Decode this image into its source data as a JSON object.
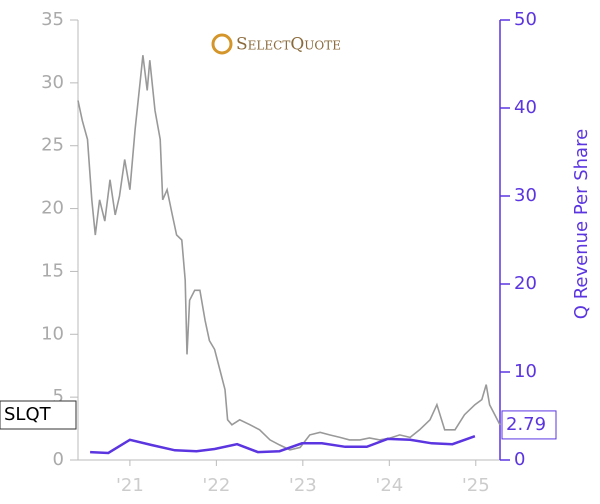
{
  "chart_data": {
    "type": "line",
    "logo": "SelectQuote",
    "xlim": [
      2020.4,
      2025.28
    ],
    "xticks": [
      {
        "value": 2021,
        "label": "'21"
      },
      {
        "value": 2022,
        "label": "'22"
      },
      {
        "value": 2023,
        "label": "'23"
      },
      {
        "value": 2024,
        "label": "'24"
      },
      {
        "value": 2025,
        "label": "'25"
      }
    ],
    "ylim": [
      0,
      35
    ],
    "yticks": [
      0,
      5,
      10,
      15,
      20,
      25,
      30,
      35
    ],
    "y2lim": [
      0,
      50
    ],
    "y2ticks": [
      0,
      10,
      20,
      30,
      40,
      50
    ],
    "series": [
      {
        "name": "SLQT",
        "color": "#999999",
        "axis": "y",
        "x": [
          2020.4,
          2020.45,
          2020.51,
          2020.56,
          2020.6,
          2020.65,
          2020.71,
          2020.77,
          2020.83,
          2020.88,
          2020.94,
          2021.0,
          2021.06,
          2021.12,
          2021.15,
          2021.2,
          2021.23,
          2021.29,
          2021.35,
          2021.38,
          2021.43,
          2021.49,
          2021.54,
          2021.6,
          2021.64,
          2021.66,
          2021.69,
          2021.75,
          2021.81,
          2021.87,
          2021.92,
          2021.98,
          2022.04,
          2022.1,
          2022.13,
          2022.18,
          2022.27,
          2022.39,
          2022.5,
          2022.62,
          2022.73,
          2022.85,
          2022.97,
          2023.08,
          2023.2,
          2023.31,
          2023.43,
          2023.54,
          2023.66,
          2023.77,
          2023.89,
          2024.01,
          2024.12,
          2024.24,
          2024.35,
          2024.47,
          2024.55,
          2024.64,
          2024.76,
          2024.87,
          2024.99,
          2025.07,
          2025.12,
          2025.16,
          2025.22,
          2025.28
        ],
        "values": [
          28.6,
          27,
          25.5,
          20.7,
          17.9,
          20.7,
          19,
          22.3,
          19.5,
          21,
          23.9,
          21.5,
          26.3,
          30.2,
          32.2,
          29.4,
          31.8,
          27.8,
          25.5,
          20.7,
          21.5,
          19.5,
          17.9,
          17.5,
          14.3,
          8.4,
          12.7,
          13.5,
          13.5,
          11.1,
          9.5,
          8.8,
          7.2,
          5.6,
          3.2,
          2.8,
          3.2,
          2.8,
          2.4,
          1.6,
          1.2,
          0.8,
          1.0,
          2.0,
          2.2,
          2.0,
          1.8,
          1.6,
          1.6,
          1.75,
          1.6,
          1.75,
          2.0,
          1.8,
          2.4,
          3.2,
          4.4,
          2.4,
          2.4,
          3.6,
          4.4,
          4.8,
          6.0,
          4.4,
          3.6,
          2.79
        ]
      },
      {
        "name": "Q Revenue Per Share",
        "color": "#5b35e0",
        "axis": "y2",
        "x": [
          2020.54,
          2020.75,
          2021.0,
          2021.25,
          2021.52,
          2021.77,
          2021.98,
          2022.24,
          2022.48,
          2022.73,
          2022.99,
          2023.22,
          2023.49,
          2023.74,
          2023.98,
          2024.24,
          2024.49,
          2024.73,
          2024.99
        ],
        "values": [
          0.9,
          0.8,
          2.3,
          1.7,
          1.1,
          1.0,
          1.25,
          1.8,
          0.9,
          1.0,
          1.9,
          1.9,
          1.5,
          1.5,
          2.4,
          2.3,
          1.9,
          1.8,
          2.7
        ]
      }
    ]
  }
}
